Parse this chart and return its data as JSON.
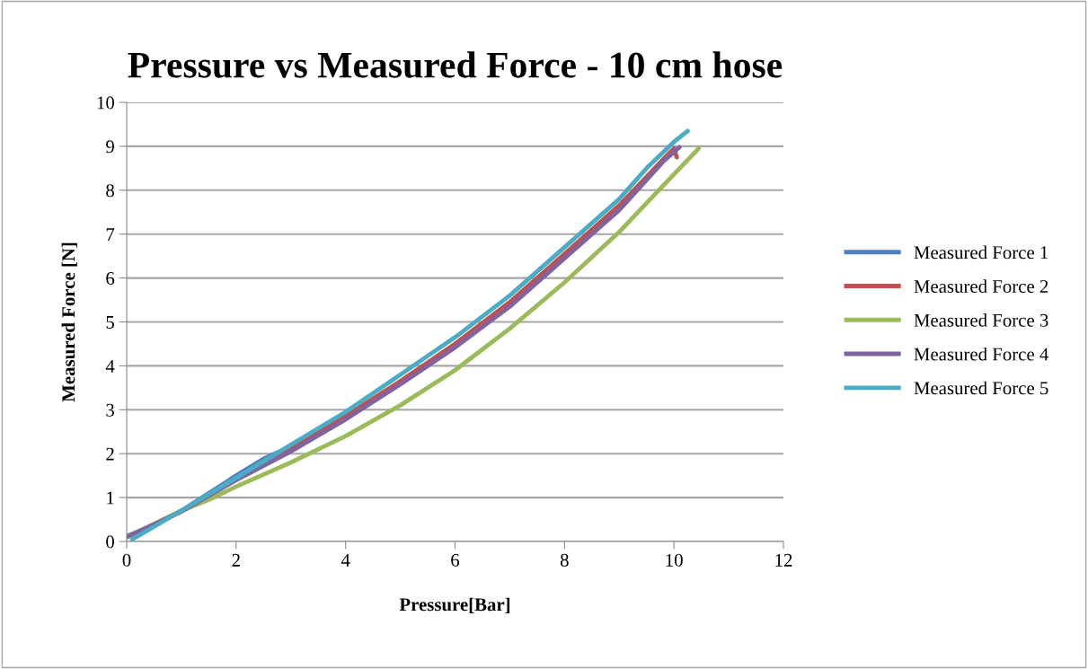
{
  "chart_data": {
    "type": "line",
    "title": "Pressure vs Measured Force - 10 cm hose",
    "xlabel": "Pressure[Bar]",
    "ylabel": "Measured Force [N]",
    "xlim": [
      0,
      12
    ],
    "xticks": [
      0,
      2,
      4,
      6,
      8,
      10,
      12
    ],
    "ylim": [
      0,
      10
    ],
    "yticks": [
      0,
      1,
      2,
      3,
      4,
      5,
      6,
      7,
      8,
      9,
      10
    ],
    "grid": "y",
    "legend": "right",
    "marker": "none",
    "line_style": "solid",
    "series": [
      {
        "name": "Measured Force 1",
        "color": "#4f81bd",
        "x": [
          0,
          0.5,
          1,
          1.5,
          2,
          2.5,
          2.8
        ],
        "values": [
          0.12,
          0.38,
          0.7,
          1.1,
          1.5,
          1.88,
          2.05
        ]
      },
      {
        "name": "Measured Force 2",
        "color": "#c0504d",
        "x": [
          2,
          3,
          4,
          5,
          6,
          7,
          8,
          9,
          9.8,
          10,
          10.05
        ],
        "values": [
          1.42,
          2.12,
          2.85,
          3.65,
          4.5,
          5.45,
          6.55,
          7.65,
          8.7,
          8.95,
          8.75
        ]
      },
      {
        "name": "Measured Force 3",
        "color": "#9bbb59",
        "x": [
          0,
          1,
          1.5,
          2,
          3,
          4,
          5,
          6,
          7,
          8,
          9,
          9.8,
          10.45
        ],
        "values": [
          0.1,
          0.7,
          0.95,
          1.25,
          1.8,
          2.4,
          3.1,
          3.9,
          4.85,
          5.9,
          7.05,
          8.1,
          8.95
        ]
      },
      {
        "name": "Measured Force 4",
        "color": "#8064a2",
        "x": [
          0,
          1,
          2,
          3,
          4,
          5,
          6,
          7,
          8,
          9,
          9.8,
          10.1
        ],
        "values": [
          0.1,
          0.68,
          1.4,
          2.05,
          2.78,
          3.58,
          4.42,
          5.35,
          6.45,
          7.55,
          8.65,
          8.98
        ]
      },
      {
        "name": "Measured Force 5",
        "color": "#4bacc6",
        "x": [
          0.1,
          1,
          2,
          3,
          4,
          5,
          6,
          7,
          8,
          9,
          9.5,
          10,
          10.25
        ],
        "values": [
          0.05,
          0.7,
          1.45,
          2.2,
          2.95,
          3.8,
          4.65,
          5.6,
          6.7,
          7.8,
          8.5,
          9.1,
          9.35
        ]
      }
    ]
  }
}
